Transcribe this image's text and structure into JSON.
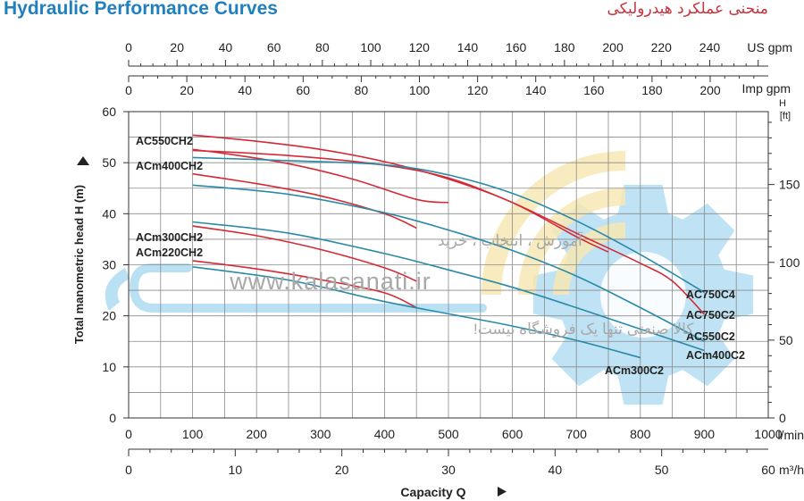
{
  "header": {
    "title_en": "Hydraulic Performance Curves",
    "title_fa": "منحنی عملکرد هیدرولیکی"
  },
  "watermark": {
    "line1": "آموزش ، انتخاب ، خرید",
    "url": "www.kalasanati.ir",
    "line3": "کالا صنعتی تنها یک فروشگاه نیست!"
  },
  "colors": {
    "red": "#d42a36",
    "teal": "#2a8aa8",
    "grid": "#8a8a8a",
    "title_blue": "#1f7fbf",
    "title_red": "#c8323a",
    "watermark_blue": "#a9d8f0",
    "watermark_yellow": "#f6e7b4"
  },
  "chart_data": {
    "type": "line",
    "xlabel": "Capacity Q",
    "ylabel": "Total manometric head H (m)",
    "y2label": "H [ft]",
    "x_unit": "l/min",
    "x2_unit": "m³/h",
    "x_top_unit": "US gpm",
    "x_top2_unit": "Imp gpm",
    "xlim": [
      0,
      1000
    ],
    "ylim": [
      0,
      60
    ],
    "grid": true,
    "x_ticks_lmin": [
      0,
      100,
      200,
      300,
      400,
      500,
      600,
      700,
      800,
      900,
      1000
    ],
    "x_ticks_m3h": [
      0,
      10,
      20,
      30,
      40,
      50,
      60
    ],
    "x_ticks_usgpm": [
      0,
      20,
      40,
      60,
      80,
      100,
      120,
      140,
      160,
      180,
      200,
      220,
      240
    ],
    "x_ticks_impgpm": [
      0,
      20,
      40,
      60,
      80,
      100,
      120,
      140,
      160,
      180,
      200
    ],
    "y_ticks_m": [
      0,
      10,
      20,
      30,
      40,
      50,
      60
    ],
    "y_ticks_ft": [
      0,
      50,
      100,
      150
    ],
    "series": [
      {
        "name": "AC550CH2",
        "color": "red",
        "label_side": "left",
        "points": [
          [
            100,
            55.4
          ],
          [
            200,
            54.2
          ],
          [
            300,
            52.6
          ],
          [
            400,
            50.2
          ],
          [
            500,
            46.8
          ],
          [
            600,
            42.2
          ],
          [
            700,
            35.5
          ],
          [
            750,
            32.5
          ]
        ]
      },
      {
        "name": "",
        "color": "red",
        "points": [
          [
            100,
            52.6
          ],
          [
            150,
            51.8
          ],
          [
            250,
            49.8
          ],
          [
            350,
            46.8
          ],
          [
            450,
            42.8
          ],
          [
            500,
            42.2
          ]
        ]
      },
      {
        "name": "ACm400CH2",
        "color": "red",
        "label_side": "left",
        "points": [
          [
            100,
            47.8
          ],
          [
            200,
            45.9
          ],
          [
            300,
            43.5
          ],
          [
            400,
            40.0
          ],
          [
            450,
            37.2
          ]
        ]
      },
      {
        "name": "ACm300CH2",
        "color": "red",
        "label_side": "left",
        "points": [
          [
            100,
            37.6
          ],
          [
            200,
            35.7
          ],
          [
            300,
            33.0
          ],
          [
            400,
            29.4
          ],
          [
            450,
            26.8
          ]
        ]
      },
      {
        "name": "ACm220CH2",
        "color": "red",
        "label_side": "left",
        "points": [
          [
            100,
            30.8
          ],
          [
            200,
            29.2
          ],
          [
            300,
            27.1
          ],
          [
            400,
            24.5
          ],
          [
            450,
            21.6
          ]
        ]
      },
      {
        "name": "AC750C2",
        "color": "red",
        "label_side": "right",
        "points": [
          [
            100,
            52.4
          ],
          [
            250,
            51.4
          ],
          [
            400,
            49.5
          ],
          [
            500,
            47.0
          ],
          [
            600,
            42.2
          ],
          [
            700,
            36.2
          ],
          [
            800,
            30.3
          ],
          [
            850,
            26.8
          ],
          [
            900,
            20.3
          ]
        ]
      },
      {
        "name": "AC750C4",
        "color": "teal",
        "label_side": "right",
        "points": [
          [
            100,
            51.0
          ],
          [
            250,
            50.4
          ],
          [
            400,
            49.6
          ],
          [
            500,
            47.6
          ],
          [
            600,
            44.0
          ],
          [
            700,
            38.6
          ],
          [
            800,
            32.0
          ],
          [
            900,
            24.6
          ]
        ]
      },
      {
        "name": "AC550C2",
        "color": "teal",
        "label_side": "right",
        "points": [
          [
            100,
            45.6
          ],
          [
            250,
            43.8
          ],
          [
            400,
            40.2
          ],
          [
            500,
            36.8
          ],
          [
            600,
            32.8
          ],
          [
            700,
            27.8
          ],
          [
            800,
            21.6
          ],
          [
            900,
            15.0
          ]
        ]
      },
      {
        "name": "ACm400C2",
        "color": "teal",
        "label_side": "right",
        "points": [
          [
            100,
            38.4
          ],
          [
            250,
            36.2
          ],
          [
            400,
            32.2
          ],
          [
            500,
            29.0
          ],
          [
            600,
            25.6
          ],
          [
            700,
            21.6
          ],
          [
            800,
            17.4
          ],
          [
            900,
            13.2
          ]
        ]
      },
      {
        "name": "ACm300C2",
        "color": "teal",
        "label_side": "right",
        "points": [
          [
            100,
            29.6
          ],
          [
            250,
            27.0
          ],
          [
            400,
            22.8
          ],
          [
            500,
            20.4
          ],
          [
            600,
            18.0
          ],
          [
            700,
            15.2
          ],
          [
            800,
            11.8
          ]
        ]
      }
    ]
  }
}
